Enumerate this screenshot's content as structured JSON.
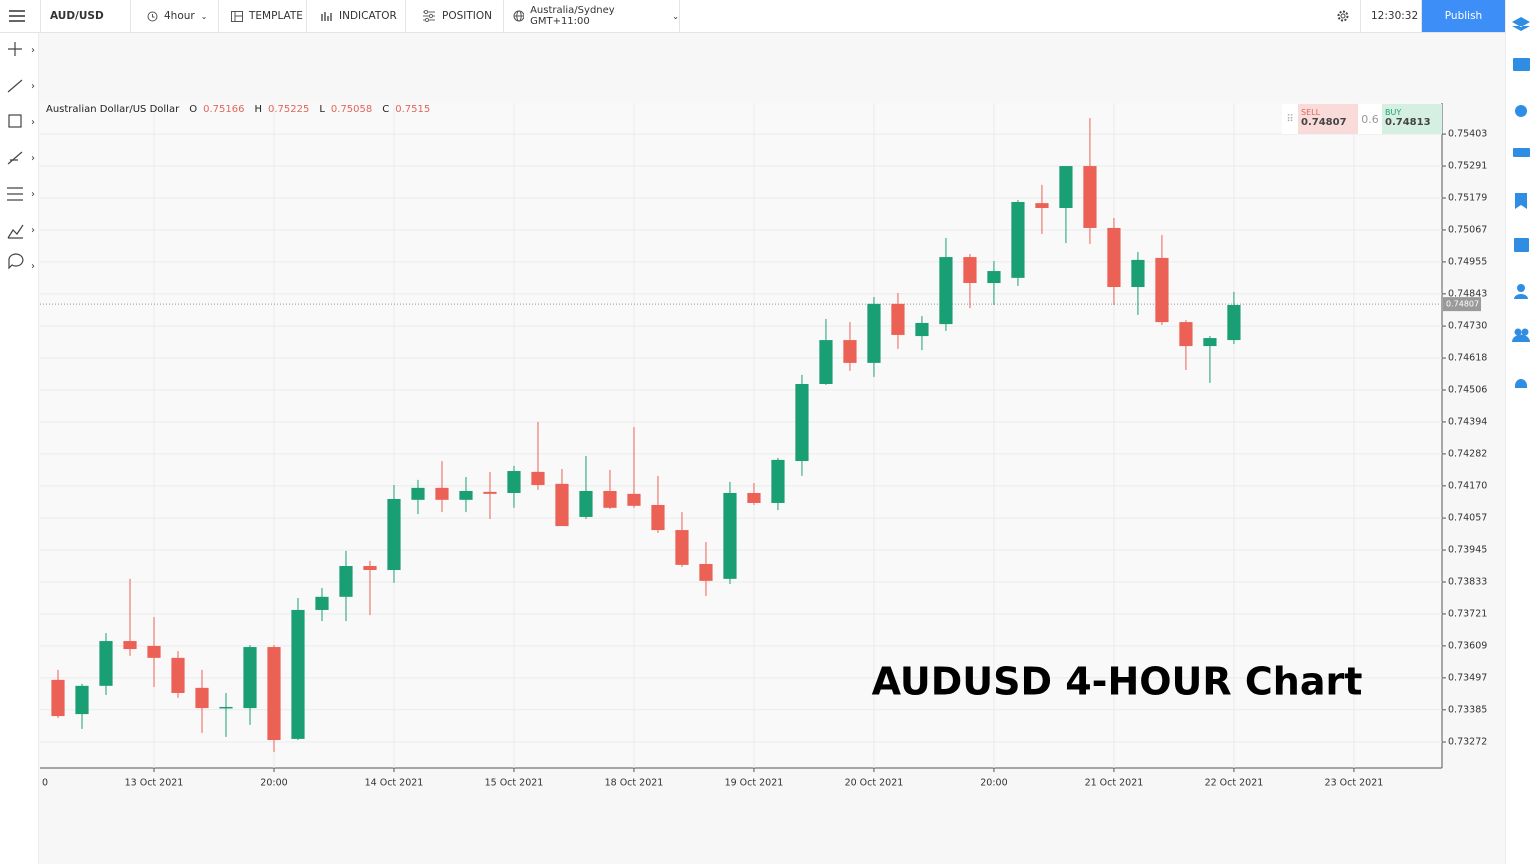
{
  "toolbar": {
    "symbol": "AUD/USD",
    "interval": "4hour",
    "template": "TEMPLATE",
    "indicator": "INDICATOR",
    "position": "POSITION",
    "timezone": "Australia/Sydney GMT+11:00",
    "time": "12:30:32",
    "publish": "Publish"
  },
  "chart_data": {
    "type": "candlestick",
    "title": "AUDUSD 4-HOUR Chart",
    "instrument": "Australian Dollar/US Dollar",
    "ohlc": [
      {
        "label": "O",
        "value": 0.75166
      },
      {
        "label": "H",
        "value": 0.75225
      },
      {
        "label": "L",
        "value": 0.75058
      },
      {
        "label": "C",
        "value": 0.7515
      }
    ],
    "up_color": "#1a9f74",
    "down_color": "#ec6156",
    "grid": true,
    "open": [
      0.7349,
      0.7337,
      0.73469,
      0.73626,
      0.73609,
      0.73567,
      0.73462,
      0.73391,
      0.73391,
      0.73605,
      0.73283,
      0.73735,
      0.73781,
      0.73889,
      0.73875,
      0.74121,
      0.74163,
      0.74121,
      0.74149,
      0.74145,
      0.74219,
      0.74177,
      0.74061,
      0.74152,
      0.74142,
      0.74103,
      0.74015,
      0.73896,
      0.73844,
      0.74145,
      0.7411,
      0.74257,
      0.74527,
      0.74681,
      0.74601,
      0.74808,
      0.74695,
      0.74737,
      0.74972,
      0.74881,
      0.74899,
      0.75161,
      0.75144,
      0.75291,
      0.75074,
      0.74867,
      0.74969,
      0.74744,
      0.7466,
      0.74681
    ],
    "high": [
      0.73525,
      0.73476,
      0.73654,
      0.73844,
      0.7371,
      0.73591,
      0.73525,
      0.73444,
      0.73612,
      0.73612,
      0.73777,
      0.73812,
      0.73942,
      0.73907,
      0.74173,
      0.74191,
      0.74257,
      0.74201,
      0.74219,
      0.7424,
      0.74394,
      0.74229,
      0.74275,
      0.74226,
      0.74376,
      0.74205,
      0.74078,
      0.73973,
      0.74184,
      0.7418,
      0.74268,
      0.74559,
      0.74755,
      0.74744,
      0.74832,
      0.74846,
      0.74765,
      0.75039,
      0.74983,
      0.74958,
      0.75172,
      0.75225,
      0.75291,
      0.75459,
      0.75109,
      0.7499,
      0.75049,
      0.74751,
      0.74695,
      0.7485
    ],
    "low": [
      0.73356,
      0.73318,
      0.73437,
      0.73574,
      0.73465,
      0.73427,
      0.73304,
      0.7329,
      0.73332,
      0.73237,
      0.73279,
      0.73696,
      0.73696,
      0.73717,
      0.7383,
      0.74071,
      0.74078,
      0.74078,
      0.74054,
      0.74093,
      0.74156,
      0.74029,
      0.74054,
      0.74089,
      0.74093,
      0.74005,
      0.73886,
      0.73784,
      0.73826,
      0.74103,
      0.74085,
      0.74205,
      0.74524,
      0.74573,
      0.74552,
      0.7465,
      0.74646,
      0.74713,
      0.74793,
      0.74804,
      0.74871,
      0.75053,
      0.75021,
      0.75018,
      0.74804,
      0.74769,
      0.74734,
      0.74576,
      0.74531,
      0.74667
    ],
    "close": [
      0.73363,
      0.73469,
      0.73626,
      0.73598,
      0.73567,
      0.73444,
      0.73391,
      0.73395,
      0.73605,
      0.73279,
      0.73735,
      0.73781,
      0.73889,
      0.73875,
      0.74124,
      0.74163,
      0.74121,
      0.74152,
      0.74142,
      0.74222,
      0.74173,
      0.74029,
      0.74152,
      0.74093,
      0.741,
      0.74015,
      0.73893,
      0.73837,
      0.74145,
      0.7411,
      0.74261,
      0.74527,
      0.74681,
      0.74601,
      0.74808,
      0.74699,
      0.74741,
      0.74972,
      0.74881,
      0.74923,
      0.75165,
      0.75144,
      0.75291,
      0.75074,
      0.74867,
      0.74962,
      0.74744,
      0.7466,
      0.74688,
      0.74804
    ],
    "ylim": [
      0.73181,
      0.75512
    ],
    "yticks": [
      0.75403,
      0.75291,
      0.75179,
      0.75067,
      0.74955,
      0.74843,
      {
        "value": 0.7473,
        "label": "0.74730"
      },
      0.74618,
      0.74506,
      0.74394,
      0.74282,
      {
        "value": 0.7417,
        "label": "0.74170"
      },
      0.74057,
      0.73945,
      0.73833,
      0.73721,
      0.73609,
      0.73497,
      0.73385,
      0.73272
    ],
    "xlim": [
      -0.75,
      57.67
    ],
    "xticks": [
      {
        "value": -1,
        "label": "0"
      },
      {
        "value": 4,
        "label": "13 Oct 2021"
      },
      {
        "value": 9,
        "label": "20:00"
      },
      {
        "value": 14,
        "label": "14 Oct 2021"
      },
      {
        "value": 19,
        "label": "15 Oct 2021"
      },
      {
        "value": 24,
        "label": "18 Oct 2021"
      },
      {
        "value": 29,
        "label": "19 Oct 2021"
      },
      {
        "value": 34,
        "label": "20 Oct 2021"
      },
      {
        "value": 39,
        "label": "20:00"
      },
      {
        "value": 44,
        "label": "21 Oct 2021"
      },
      {
        "value": 49,
        "label": "22 Oct 2021"
      },
      {
        "value": 54,
        "label": "23 Oct 2021"
      }
    ],
    "last_price": 0.74807,
    "sell": {
      "label": "SELL",
      "value": 0.74807
    },
    "buy": {
      "label": "BUY",
      "value": 0.74813
    },
    "spread": 0.6
  }
}
